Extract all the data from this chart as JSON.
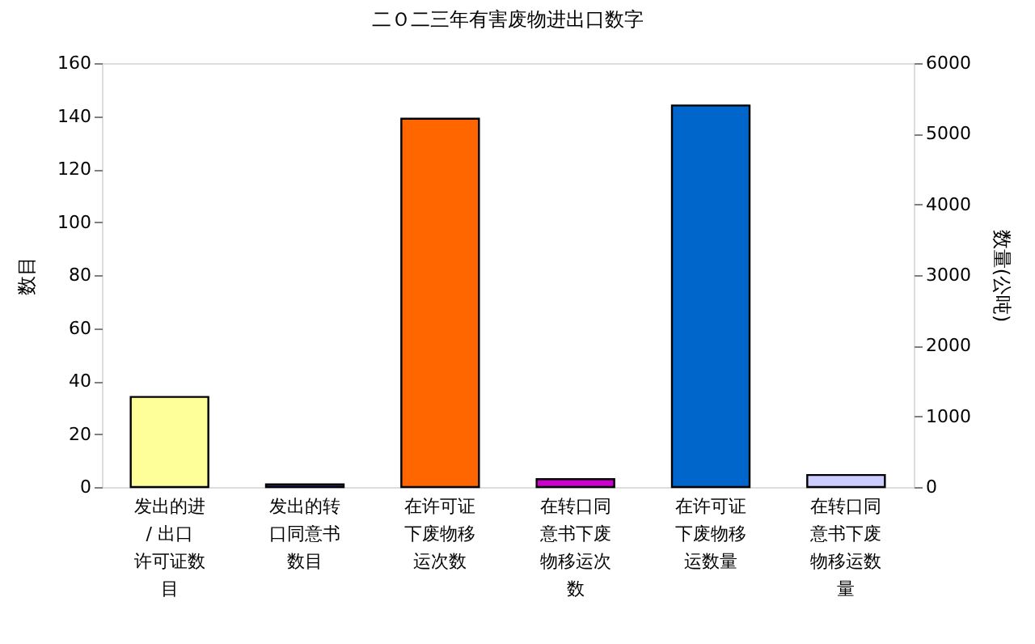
{
  "chart_data": {
    "type": "bar",
    "title": "二Ｏ二三年有害废物进出口数字",
    "categories": [
      "发出的进 / 出口许可证数目",
      "发出的转口同意书数目",
      "在许可证下废物移运次数",
      "在转口同意书下废物移运次数",
      "在许可证下废物移运数量",
      "在转口同意书下废物移运数量"
    ],
    "series": [
      {
        "colors": [
          "#ffff99",
          "#333399",
          "#ff6600",
          "#cc00cc",
          null,
          null
        ],
        "values": [
          34,
          1,
          139,
          3,
          null,
          null
        ]
      },
      {
        "axis": "y2",
        "colors": [
          null,
          null,
          null,
          null,
          "#0066cc",
          "#ccccff"
        ],
        "values": [
          null,
          null,
          null,
          null,
          5400,
          170
        ]
      }
    ],
    "ylabel": "数目",
    "y2label": "数量(公吨)",
    "ylim": [
      0,
      160
    ],
    "yticks": [
      0,
      20,
      40,
      60,
      80,
      100,
      120,
      140,
      160
    ],
    "y2lim": [
      0,
      6000
    ],
    "y2ticks": [
      0,
      1000,
      2000,
      3000,
      4000,
      5000,
      6000
    ],
    "grid": false
  }
}
